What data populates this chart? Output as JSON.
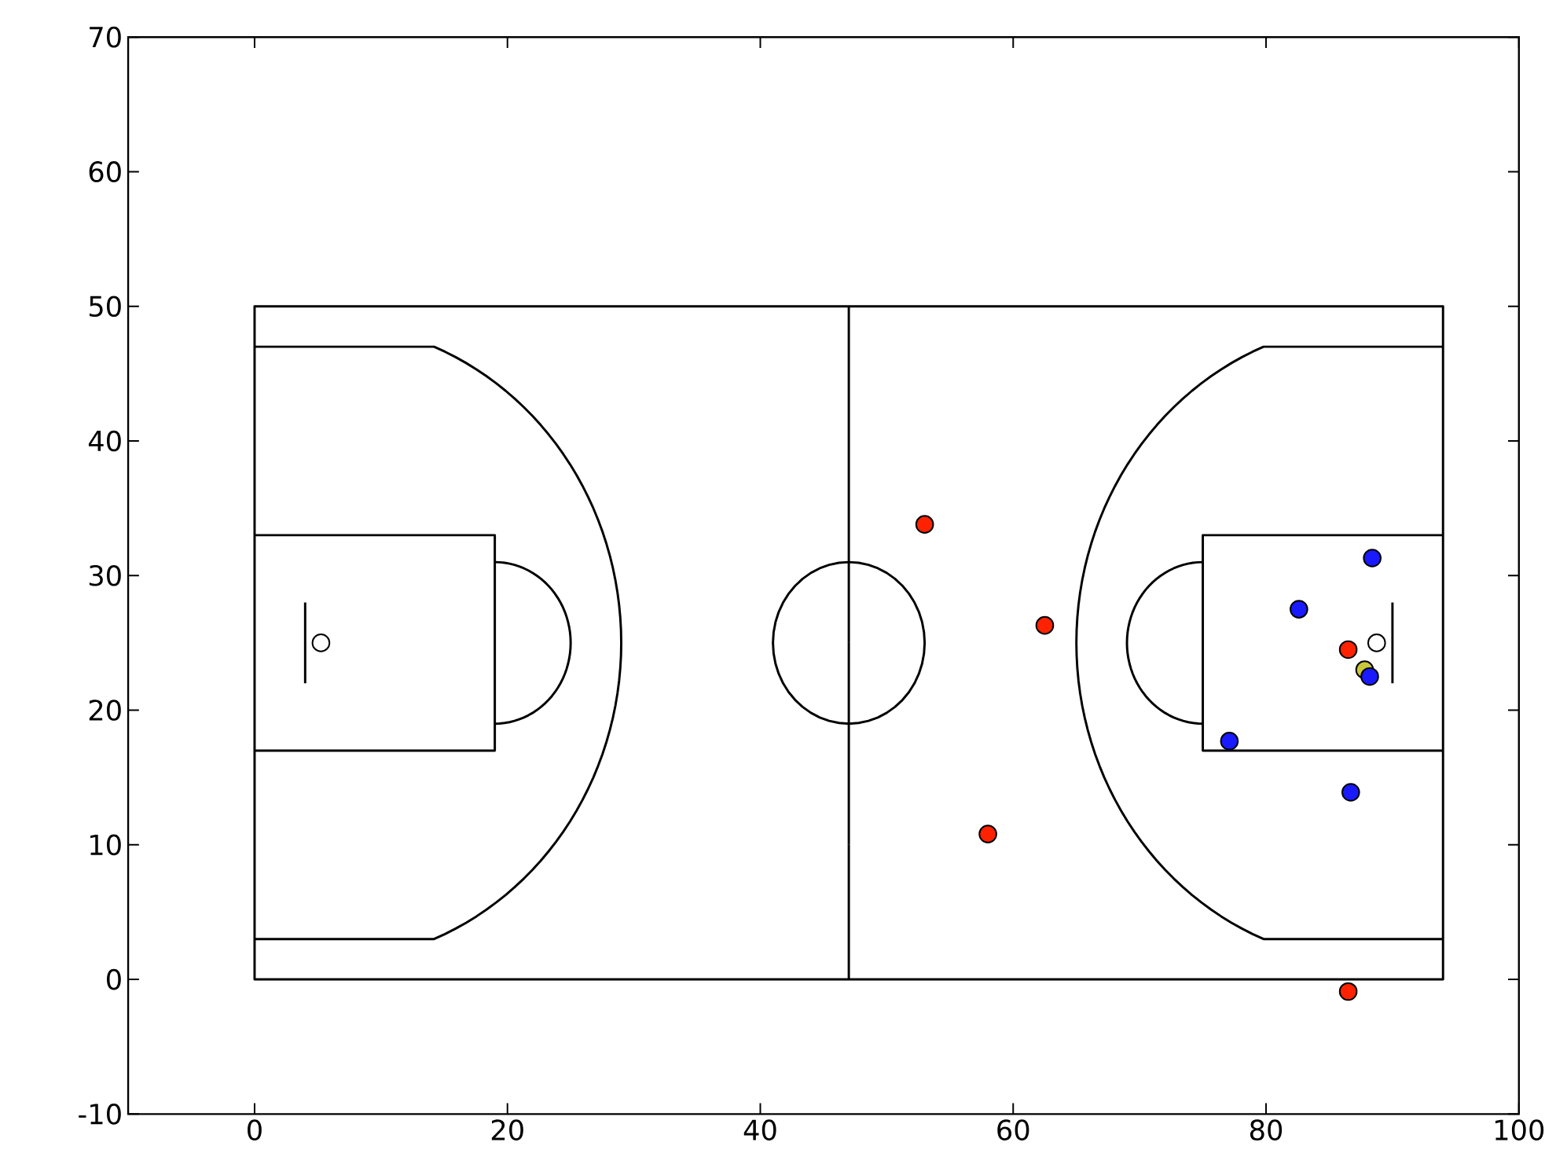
{
  "chart_data": {
    "type": "scatter",
    "xlim": [
      -10,
      100
    ],
    "ylim": [
      -10,
      70
    ],
    "xticks": [
      0,
      20,
      40,
      60,
      80,
      100
    ],
    "yticks": [
      -10,
      0,
      10,
      20,
      30,
      40,
      50,
      60,
      70
    ],
    "series": [
      {
        "color": "#ffffff",
        "x": [
          5.25,
          88.75
        ],
        "values": [
          25,
          25
        ]
      },
      {
        "color": "#ff2200",
        "x": [
          53,
          62.5,
          58,
          86.5,
          86.5
        ],
        "values": [
          33.8,
          26.3,
          10.8,
          24.5,
          -0.9
        ]
      },
      {
        "color": "#1a1aff",
        "x": [
          88.4,
          82.6,
          77.1,
          86.7
        ],
        "values": [
          31.3,
          27.5,
          17.7,
          13.9
        ]
      },
      {
        "color": "#c8c83c",
        "x": [
          87.8
        ],
        "values": [
          23
        ]
      },
      {
        "color": "#1a1aff",
        "x": [
          88.2
        ],
        "values": [
          22.5
        ]
      }
    ]
  }
}
